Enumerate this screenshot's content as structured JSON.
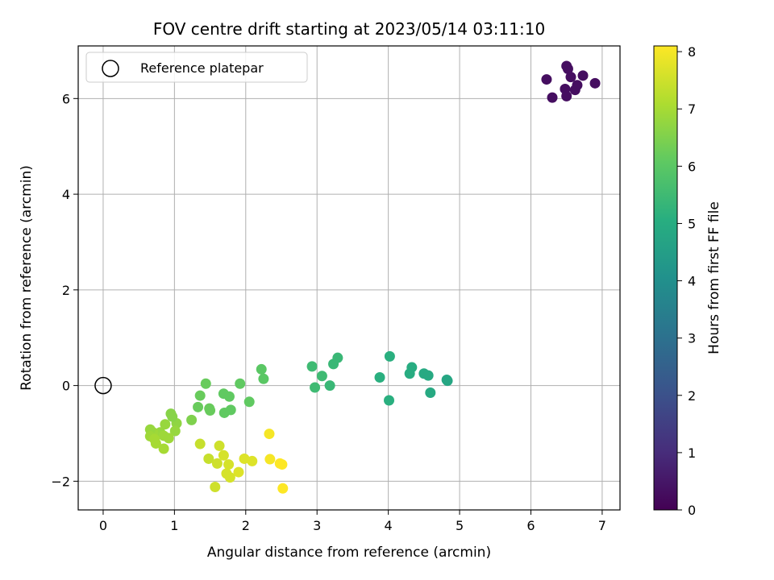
{
  "chart_data": {
    "type": "scatter",
    "title": "FOV centre drift starting at 2023/05/14 03:11:10",
    "xlabel": "Angular distance from reference (arcmin)",
    "ylabel": "Rotation from reference (arcmin)",
    "xlim": [
      -0.35,
      7.25
    ],
    "ylim": [
      -2.6,
      7.1
    ],
    "xticks": [
      0,
      1,
      2,
      3,
      4,
      5,
      6,
      7
    ],
    "yticks": [
      -2,
      0,
      2,
      4,
      6
    ],
    "grid": true,
    "legend": {
      "placement": "top-left",
      "entries": [
        "Reference platepar"
      ]
    },
    "reference": {
      "x": 0,
      "y": 0,
      "label": "Reference platepar"
    },
    "colorbar": {
      "label": "Hours from first FF file",
      "colormap": "viridis",
      "range": [
        0,
        8.1
      ],
      "ticks": [
        0,
        1,
        2,
        3,
        4,
        5,
        6,
        7,
        8
      ]
    },
    "points": [
      {
        "x": 6.22,
        "y": 6.4,
        "c": 0.3
      },
      {
        "x": 6.3,
        "y": 6.02,
        "c": 0.3
      },
      {
        "x": 6.48,
        "y": 6.2,
        "c": 0.3
      },
      {
        "x": 6.5,
        "y": 6.05,
        "c": 0.3
      },
      {
        "x": 6.5,
        "y": 6.68,
        "c": 0.3
      },
      {
        "x": 6.52,
        "y": 6.62,
        "c": 0.3
      },
      {
        "x": 6.56,
        "y": 6.45,
        "c": 0.3
      },
      {
        "x": 6.62,
        "y": 6.18,
        "c": 0.3
      },
      {
        "x": 6.65,
        "y": 6.28,
        "c": 0.3
      },
      {
        "x": 6.73,
        "y": 6.48,
        "c": 0.3
      },
      {
        "x": 6.9,
        "y": 6.32,
        "c": 0.3
      },
      {
        "x": 3.88,
        "y": 0.17,
        "c": 5.1
      },
      {
        "x": 4.01,
        "y": -0.31,
        "c": 5.1
      },
      {
        "x": 4.02,
        "y": 0.61,
        "c": 5.1
      },
      {
        "x": 4.3,
        "y": 0.25,
        "c": 5.0
      },
      {
        "x": 4.33,
        "y": 0.38,
        "c": 5.0
      },
      {
        "x": 4.5,
        "y": 0.25,
        "c": 4.9
      },
      {
        "x": 4.56,
        "y": 0.21,
        "c": 4.9
      },
      {
        "x": 4.59,
        "y": -0.15,
        "c": 4.9
      },
      {
        "x": 4.82,
        "y": 0.12,
        "c": 4.8
      },
      {
        "x": 4.83,
        "y": 0.1,
        "c": 4.8
      },
      {
        "x": 2.93,
        "y": 0.4,
        "c": 5.5
      },
      {
        "x": 2.97,
        "y": -0.04,
        "c": 5.5
      },
      {
        "x": 3.07,
        "y": 0.2,
        "c": 5.5
      },
      {
        "x": 3.18,
        "y": 0.0,
        "c": 5.4
      },
      {
        "x": 3.23,
        "y": 0.45,
        "c": 5.4
      },
      {
        "x": 3.29,
        "y": 0.58,
        "c": 5.4
      },
      {
        "x": 1.44,
        "y": 0.04,
        "c": 6.2
      },
      {
        "x": 1.36,
        "y": -0.21,
        "c": 6.2
      },
      {
        "x": 1.33,
        "y": -0.45,
        "c": 6.2
      },
      {
        "x": 1.49,
        "y": -0.48,
        "c": 6.2
      },
      {
        "x": 1.5,
        "y": -0.52,
        "c": 6.2
      },
      {
        "x": 1.69,
        "y": -0.17,
        "c": 6.1
      },
      {
        "x": 1.7,
        "y": -0.57,
        "c": 6.1
      },
      {
        "x": 1.77,
        "y": -0.23,
        "c": 6.1
      },
      {
        "x": 1.79,
        "y": -0.51,
        "c": 6.1
      },
      {
        "x": 1.92,
        "y": 0.04,
        "c": 6.1
      },
      {
        "x": 2.05,
        "y": -0.34,
        "c": 6.1
      },
      {
        "x": 2.22,
        "y": 0.34,
        "c": 6.0
      },
      {
        "x": 2.25,
        "y": 0.14,
        "c": 6.0
      },
      {
        "x": 1.24,
        "y": -0.72,
        "c": 6.5
      },
      {
        "x": 1.03,
        "y": -0.79,
        "c": 6.7
      },
      {
        "x": 1.01,
        "y": -0.95,
        "c": 6.8
      },
      {
        "x": 0.95,
        "y": -0.59,
        "c": 6.6
      },
      {
        "x": 0.97,
        "y": -0.65,
        "c": 6.6
      },
      {
        "x": 0.87,
        "y": -0.81,
        "c": 6.8
      },
      {
        "x": 0.8,
        "y": -0.98,
        "c": 6.8
      },
      {
        "x": 0.85,
        "y": -1.05,
        "c": 6.9
      },
      {
        "x": 0.92,
        "y": -1.1,
        "c": 6.9
      },
      {
        "x": 0.7,
        "y": -0.98,
        "c": 6.9
      },
      {
        "x": 0.66,
        "y": -0.92,
        "c": 6.8
      },
      {
        "x": 0.66,
        "y": -1.06,
        "c": 6.9
      },
      {
        "x": 0.72,
        "y": -1.12,
        "c": 7.0
      },
      {
        "x": 0.74,
        "y": -1.21,
        "c": 7.0
      },
      {
        "x": 0.85,
        "y": -1.32,
        "c": 7.0
      },
      {
        "x": 1.36,
        "y": -1.22,
        "c": 7.4
      },
      {
        "x": 1.48,
        "y": -1.53,
        "c": 7.4
      },
      {
        "x": 1.57,
        "y": -2.12,
        "c": 7.5
      },
      {
        "x": 1.6,
        "y": -1.63,
        "c": 7.5
      },
      {
        "x": 1.63,
        "y": -1.26,
        "c": 7.5
      },
      {
        "x": 1.69,
        "y": -1.46,
        "c": 7.6
      },
      {
        "x": 1.73,
        "y": -1.84,
        "c": 7.6
      },
      {
        "x": 1.76,
        "y": -1.65,
        "c": 7.6
      },
      {
        "x": 1.78,
        "y": -1.92,
        "c": 7.6
      },
      {
        "x": 1.9,
        "y": -1.81,
        "c": 7.7
      },
      {
        "x": 1.98,
        "y": -1.53,
        "c": 7.7
      },
      {
        "x": 2.09,
        "y": -1.58,
        "c": 7.7
      },
      {
        "x": 2.33,
        "y": -1.01,
        "c": 8.0
      },
      {
        "x": 2.34,
        "y": -1.54,
        "c": 8.0
      },
      {
        "x": 2.48,
        "y": -1.63,
        "c": 8.1
      },
      {
        "x": 2.51,
        "y": -1.65,
        "c": 8.1
      },
      {
        "x": 2.52,
        "y": -2.15,
        "c": 8.1
      }
    ]
  }
}
